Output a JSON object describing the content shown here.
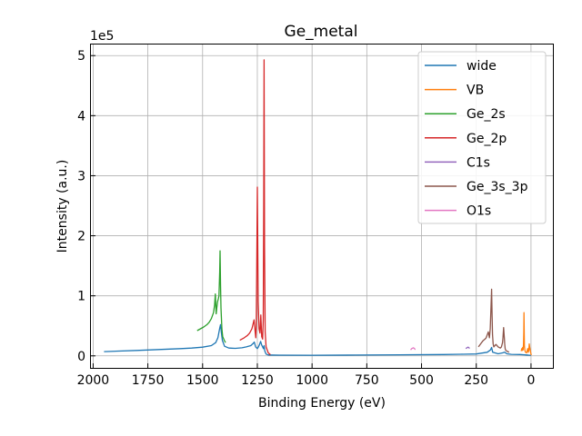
{
  "chart_data": {
    "type": "line",
    "title": "Ge_metal",
    "xlabel": "Binding Energy (eV)",
    "ylabel": "Intensity (a.u.)",
    "y_multiplier": "1e5",
    "xlim": [
      2010,
      -100
    ],
    "ylim": [
      -20000,
      520000
    ],
    "x_inverted": true,
    "grid": true,
    "legend_position": "top-right",
    "x_ticks": [
      2000,
      1750,
      1500,
      1250,
      1000,
      750,
      500,
      250,
      0
    ],
    "x_tick_labels": [
      "2000",
      "1750",
      "1500",
      "1250",
      "1000",
      "750",
      "500",
      "250",
      "0"
    ],
    "y_ticks": [
      0,
      100000,
      200000,
      300000,
      400000,
      500000
    ],
    "y_tick_labels": [
      "0",
      "1",
      "2",
      "3",
      "4",
      "5"
    ],
    "series": [
      {
        "name": "wide",
        "color": "#1f77b4",
        "x": [
          1950,
          1800,
          1700,
          1600,
          1550,
          1500,
          1460,
          1440,
          1430,
          1422,
          1418,
          1414,
          1410,
          1400,
          1380,
          1350,
          1320,
          1300,
          1280,
          1268,
          1264,
          1258,
          1250,
          1245,
          1240,
          1235,
          1230,
          1222,
          1219,
          1216,
          1210,
          1200,
          1150,
          1000,
          800,
          600,
          400,
          320,
          250,
          200,
          185,
          180,
          175,
          150,
          130,
          120,
          110,
          90,
          50,
          30,
          20,
          10,
          0
        ],
        "y": [
          7000,
          9000,
          10500,
          12000,
          13000,
          14500,
          17000,
          22000,
          30000,
          46000,
          52000,
          38000,
          26000,
          16000,
          13000,
          12500,
          13500,
          15000,
          17000,
          21000,
          23000,
          15000,
          12000,
          15000,
          19000,
          24000,
          18000,
          12000,
          17000,
          8000,
          3000,
          1500,
          1200,
          1000,
          1300,
          1800,
          2200,
          2700,
          3200,
          6000,
          10000,
          14000,
          6000,
          3500,
          5000,
          6000,
          3500,
          2500,
          2200,
          1800,
          1500,
          1200,
          1000
        ]
      },
      {
        "name": "VB",
        "color": "#ff7f0e",
        "x": [
          45,
          42,
          40,
          38,
          36,
          34,
          33,
          32,
          31,
          30,
          28,
          25,
          20,
          18,
          15,
          12,
          10,
          8,
          5,
          2,
          0,
          -2
        ],
        "y": [
          8000,
          12000,
          9000,
          14000,
          10000,
          20000,
          40000,
          72000,
          35000,
          16000,
          9000,
          6000,
          5000,
          8000,
          12000,
          6000,
          9000,
          20000,
          12000,
          7000,
          3000,
          1500
        ]
      },
      {
        "name": "Ge_2s",
        "color": "#2ca02c",
        "x": [
          1525,
          1510,
          1495,
          1480,
          1470,
          1460,
          1450,
          1445,
          1442,
          1438,
          1435,
          1432,
          1428,
          1425,
          1422,
          1420,
          1418,
          1416,
          1412,
          1408,
          1400,
          1395
        ],
        "y": [
          42000,
          45000,
          48000,
          52000,
          56000,
          62000,
          72000,
          85000,
          103000,
          70000,
          80000,
          90000,
          95000,
          100000,
          140000,
          175000,
          120000,
          80000,
          45000,
          32000,
          25000,
          22000
        ]
      },
      {
        "name": "Ge_2p",
        "color": "#d62728",
        "x": [
          1330,
          1310,
          1295,
          1285,
          1275,
          1268,
          1265,
          1260,
          1257,
          1255,
          1253,
          1250,
          1246,
          1242,
          1238,
          1236,
          1234,
          1230,
          1226,
          1223,
          1221,
          1219,
          1217,
          1214,
          1210,
          1200,
          1190
        ],
        "y": [
          26000,
          30000,
          34000,
          38000,
          45000,
          55000,
          60000,
          40000,
          30000,
          50000,
          140000,
          281000,
          90000,
          45000,
          38000,
          50000,
          68000,
          32000,
          28000,
          60000,
          250000,
          493000,
          180000,
          40000,
          15000,
          5000,
          2000
        ]
      },
      {
        "name": "C1s",
        "color": "#9467bd",
        "x": [
          298,
          295,
          292,
          290,
          288,
          285,
          282,
          280
        ],
        "y": [
          12000,
          13000,
          13500,
          14000,
          14500,
          14000,
          13000,
          12500
        ]
      },
      {
        "name": "Ge_3s_3p",
        "color": "#8c564b",
        "x": [
          240,
          230,
          220,
          210,
          205,
          200,
          195,
          190,
          186,
          183,
          180,
          178,
          176,
          173,
          170,
          165,
          160,
          150,
          140,
          135,
          130,
          128,
          125,
          122,
          120,
          118,
          115,
          110,
          100
        ],
        "y": [
          15000,
          20000,
          25000,
          28000,
          30000,
          35000,
          40000,
          30000,
          45000,
          80000,
          111000,
          70000,
          35000,
          20000,
          15000,
          17000,
          19000,
          15000,
          13000,
          15000,
          22000,
          30000,
          47000,
          30000,
          20000,
          12000,
          9000,
          8000,
          6000
        ]
      },
      {
        "name": "O1s",
        "color": "#e377c2",
        "x": [
          550,
          547,
          545,
          542,
          540,
          538,
          535,
          532,
          530,
          528
        ],
        "y": [
          10000,
          11000,
          12000,
          12500,
          13000,
          13500,
          13000,
          12000,
          11000,
          10500
        ]
      }
    ]
  }
}
